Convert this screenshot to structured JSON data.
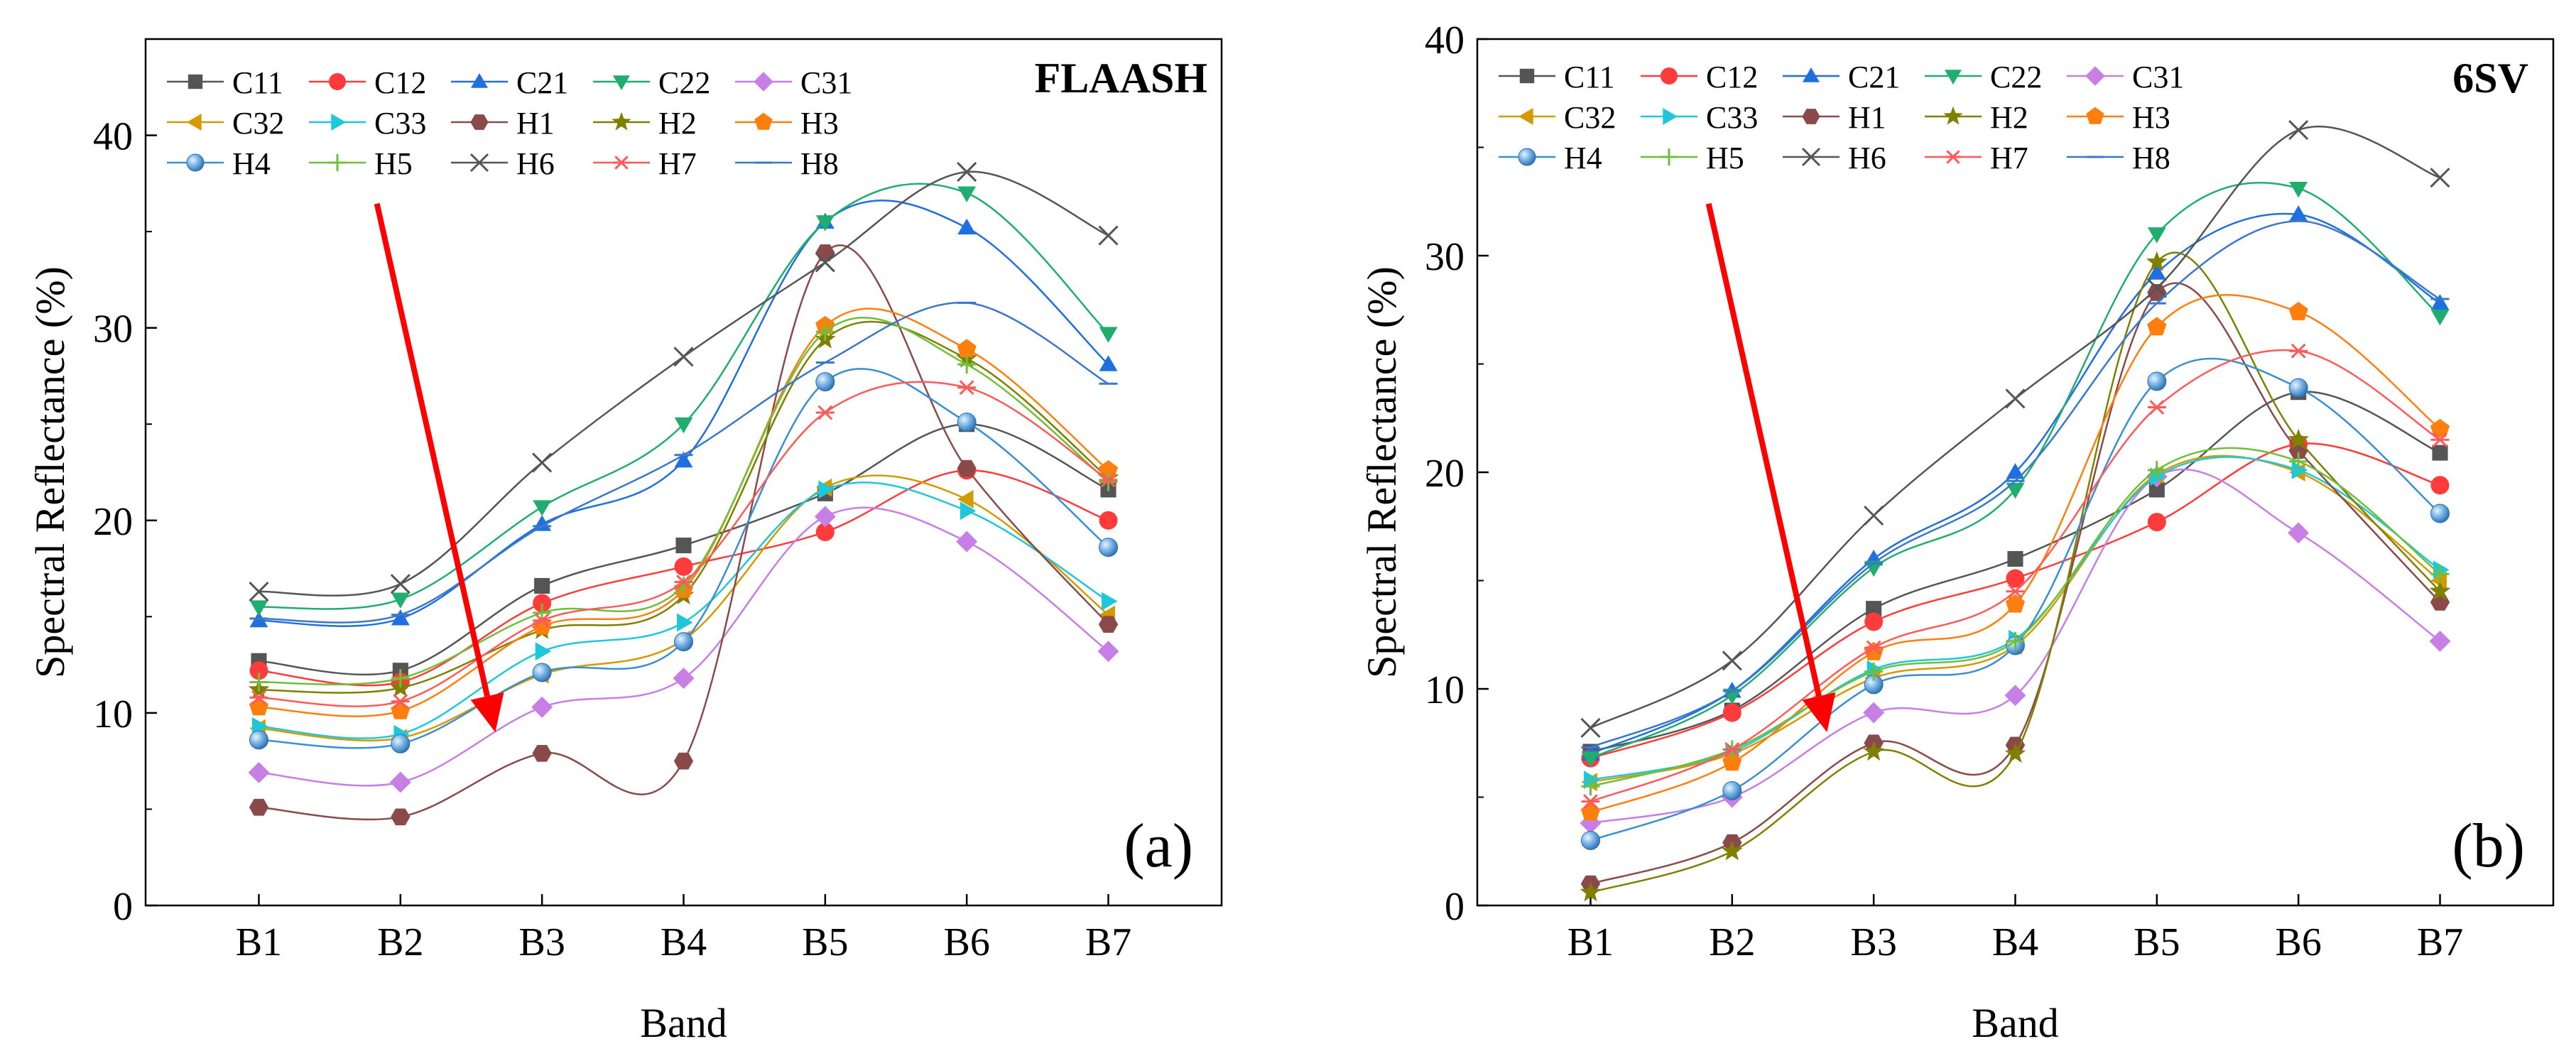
{
  "figure": {
    "bands": [
      "B1",
      "B2",
      "B3",
      "B4",
      "B5",
      "B6",
      "B7"
    ]
  },
  "chart_data": [
    {
      "type": "line",
      "panel_label": "(a)",
      "method": "FLAASH",
      "xlabel": "Band",
      "ylabel": "Spectral Reflectance (%)",
      "ylim": [
        0,
        45
      ],
      "yticks": [
        0,
        10,
        20,
        30,
        40
      ],
      "categories": [
        "B1",
        "B2",
        "B3",
        "B4",
        "B5",
        "B6",
        "B7"
      ],
      "legend_position": "top-left",
      "annotation": "red arrow pointing down-right",
      "series": [
        {
          "name": "C11",
          "values": [
            12.7,
            12.2,
            16.6,
            18.7,
            21.4,
            25.0,
            21.6
          ]
        },
        {
          "name": "C12",
          "values": [
            12.2,
            11.6,
            15.7,
            17.6,
            19.4,
            22.6,
            20.0
          ]
        },
        {
          "name": "C21",
          "values": [
            14.8,
            14.9,
            19.8,
            23.1,
            35.5,
            35.2,
            28.1
          ]
        },
        {
          "name": "C22",
          "values": [
            15.5,
            15.9,
            20.7,
            25.0,
            35.5,
            37.0,
            29.7
          ]
        },
        {
          "name": "C31",
          "values": [
            6.9,
            6.4,
            10.3,
            11.8,
            20.2,
            18.9,
            13.2
          ]
        },
        {
          "name": "C32",
          "values": [
            9.2,
            8.7,
            12.0,
            13.8,
            21.7,
            21.1,
            15.1
          ]
        },
        {
          "name": "C33",
          "values": [
            9.3,
            8.9,
            13.2,
            14.7,
            21.6,
            20.5,
            15.8
          ]
        },
        {
          "name": "H1",
          "values": [
            5.1,
            4.6,
            7.9,
            7.5,
            33.9,
            22.7,
            14.6
          ]
        },
        {
          "name": "H2",
          "values": [
            11.2,
            11.3,
            14.3,
            16.1,
            29.4,
            28.4,
            22.2
          ]
        },
        {
          "name": "H3",
          "values": [
            10.3,
            10.1,
            14.5,
            16.4,
            30.1,
            28.9,
            22.6
          ]
        },
        {
          "name": "H4",
          "values": [
            8.6,
            8.4,
            12.1,
            13.7,
            27.2,
            25.1,
            18.6
          ]
        },
        {
          "name": "H5",
          "values": [
            11.6,
            11.8,
            15.2,
            16.6,
            29.8,
            28.1,
            22.0
          ]
        },
        {
          "name": "H6",
          "values": [
            16.3,
            16.7,
            23.0,
            28.5,
            33.4,
            38.1,
            34.8
          ]
        },
        {
          "name": "H7",
          "values": [
            10.8,
            10.6,
            14.8,
            16.8,
            25.6,
            26.9,
            22.1
          ]
        },
        {
          "name": "H8",
          "values": [
            14.9,
            15.1,
            19.7,
            23.4,
            28.2,
            31.3,
            27.1
          ]
        }
      ]
    },
    {
      "type": "line",
      "panel_label": "(b)",
      "method": "6SV",
      "xlabel": "Band",
      "ylabel": "Spectral Reflectance (%)",
      "ylim": [
        0,
        40
      ],
      "yticks": [
        0,
        10,
        20,
        30,
        40
      ],
      "categories": [
        "B1",
        "B2",
        "B3",
        "B4",
        "B5",
        "B6",
        "B7"
      ],
      "legend_position": "top-left",
      "annotation": "red arrow pointing down-right",
      "series": [
        {
          "name": "C11",
          "values": [
            7.1,
            9.0,
            13.7,
            16.0,
            19.2,
            23.7,
            20.9
          ]
        },
        {
          "name": "C12",
          "values": [
            6.8,
            8.9,
            13.1,
            15.1,
            17.7,
            21.3,
            19.4
          ]
        },
        {
          "name": "C21",
          "values": [
            7.0,
            9.9,
            16.0,
            20.0,
            29.2,
            31.9,
            27.8
          ]
        },
        {
          "name": "C22",
          "values": [
            6.8,
            9.7,
            15.6,
            19.2,
            31.0,
            33.1,
            27.2
          ]
        },
        {
          "name": "C31",
          "values": [
            3.8,
            5.0,
            8.9,
            9.7,
            19.8,
            17.2,
            12.2
          ]
        },
        {
          "name": "C32",
          "values": [
            5.7,
            7.0,
            10.5,
            12.0,
            19.9,
            20.0,
            15.0
          ]
        },
        {
          "name": "C33",
          "values": [
            5.8,
            7.1,
            10.9,
            12.3,
            19.8,
            20.1,
            15.5
          ]
        },
        {
          "name": "H1",
          "values": [
            1.0,
            2.9,
            7.5,
            7.4,
            28.3,
            21.0,
            14.0
          ]
        },
        {
          "name": "H2",
          "values": [
            0.6,
            2.5,
            7.1,
            7.0,
            29.7,
            21.5,
            14.5
          ]
        },
        {
          "name": "H3",
          "values": [
            4.3,
            6.6,
            11.7,
            13.9,
            26.7,
            27.4,
            22.0
          ]
        },
        {
          "name": "H4",
          "values": [
            3.0,
            5.3,
            10.2,
            12.0,
            24.2,
            23.9,
            18.1
          ]
        },
        {
          "name": "H5",
          "values": [
            5.5,
            7.2,
            10.8,
            12.2,
            20.1,
            20.5,
            15.3
          ]
        },
        {
          "name": "H6",
          "values": [
            8.2,
            11.3,
            18.0,
            23.4,
            28.5,
            35.8,
            33.6
          ]
        },
        {
          "name": "H7",
          "values": [
            4.8,
            7.2,
            11.9,
            14.5,
            23.0,
            25.6,
            21.5
          ]
        },
        {
          "name": "H8",
          "values": [
            7.3,
            9.9,
            15.8,
            19.6,
            27.8,
            31.6,
            28.0
          ]
        }
      ]
    }
  ],
  "styles": {
    "C11": {
      "color": "#555555",
      "marker": "square"
    },
    "C12": {
      "color": "#ff3b3b",
      "marker": "circle"
    },
    "C21": {
      "color": "#1f6fe0",
      "marker": "triangle-up"
    },
    "C22": {
      "color": "#1fae6e",
      "marker": "triangle-down"
    },
    "C31": {
      "color": "#c77fe6",
      "marker": "diamond"
    },
    "C32": {
      "color": "#d49a00",
      "marker": "triangle-left"
    },
    "C33": {
      "color": "#1ec8d8",
      "marker": "triangle-right"
    },
    "H1": {
      "color": "#8b4a4a",
      "marker": "hexagon"
    },
    "H2": {
      "color": "#808000",
      "marker": "star"
    },
    "H3": {
      "color": "#ff7f0e",
      "marker": "pentagon"
    },
    "H4": {
      "color": "#3a8fd0",
      "marker": "ball"
    },
    "H5": {
      "color": "#6fbf3a",
      "marker": "plus"
    },
    "H6": {
      "color": "#555555",
      "marker": "x"
    },
    "H7": {
      "color": "#ff5a5a",
      "marker": "asterisk"
    },
    "H8": {
      "color": "#3a78c9",
      "marker": "dash"
    },
    "arrow": {
      "color": "#ff0000"
    }
  }
}
